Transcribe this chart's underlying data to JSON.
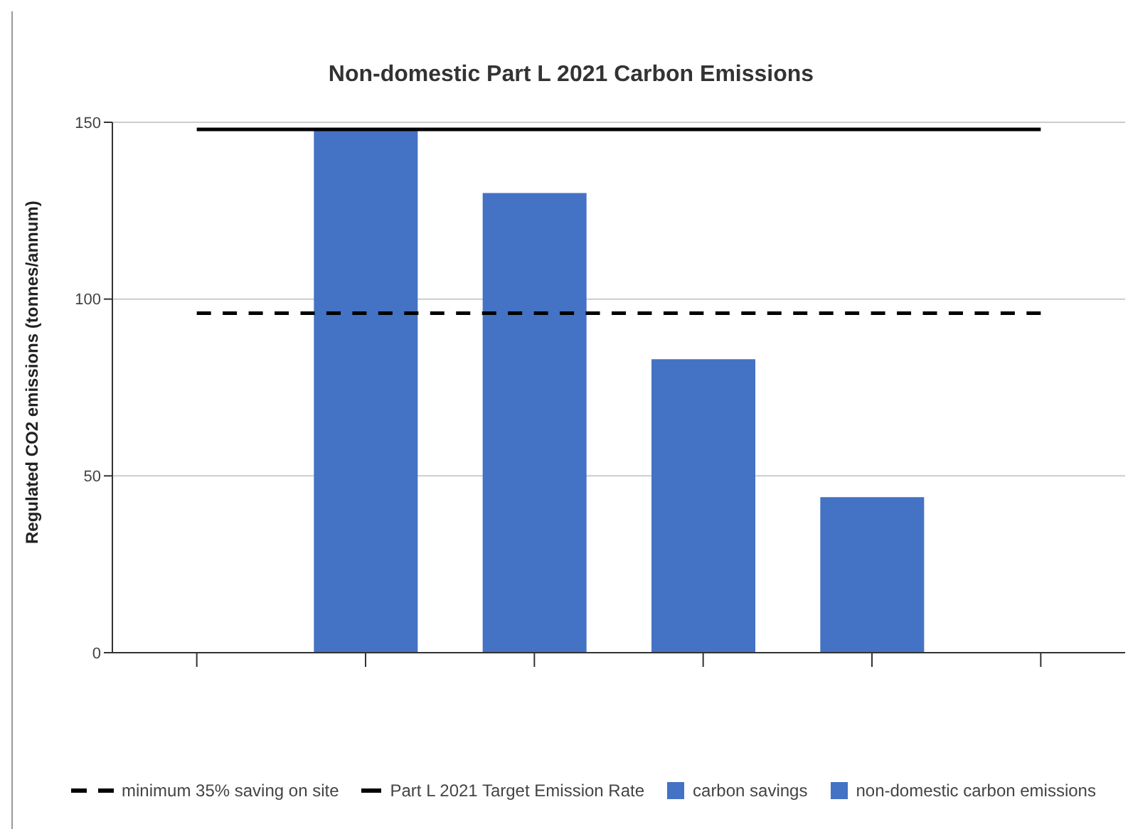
{
  "chart_data": {
    "type": "bar",
    "title": "Non-domestic Part L 2021 Carbon Emissions",
    "ylabel": "Regulated CO2 emissions (tonnes/annum)",
    "categories": [
      null,
      null,
      null,
      null,
      null,
      null
    ],
    "series": [
      {
        "name": "minimum 35% saving on site",
        "type": "line",
        "line_style": "dashed",
        "color": "#000000",
        "values": [
          96,
          96,
          96,
          96,
          96,
          96
        ]
      },
      {
        "name": "Part L 2021 Target Emission Rate",
        "type": "line",
        "line_style": "solid",
        "color": "#000000",
        "values": [
          148,
          148,
          148,
          148,
          148,
          148
        ]
      },
      {
        "name": "carbon savings",
        "color": "#4472c4",
        "values": [
          null,
          null,
          null,
          null,
          null,
          null
        ]
      },
      {
        "name": "non-domestic carbon emissions",
        "color": "#4472c4",
        "values": [
          null,
          148,
          130,
          83,
          44,
          null
        ]
      }
    ],
    "stacked": true,
    "ylim": [
      0,
      150
    ],
    "yticks": [
      0,
      50,
      100,
      150
    ],
    "grid": "y",
    "legend": "bottom",
    "marker": "none"
  }
}
